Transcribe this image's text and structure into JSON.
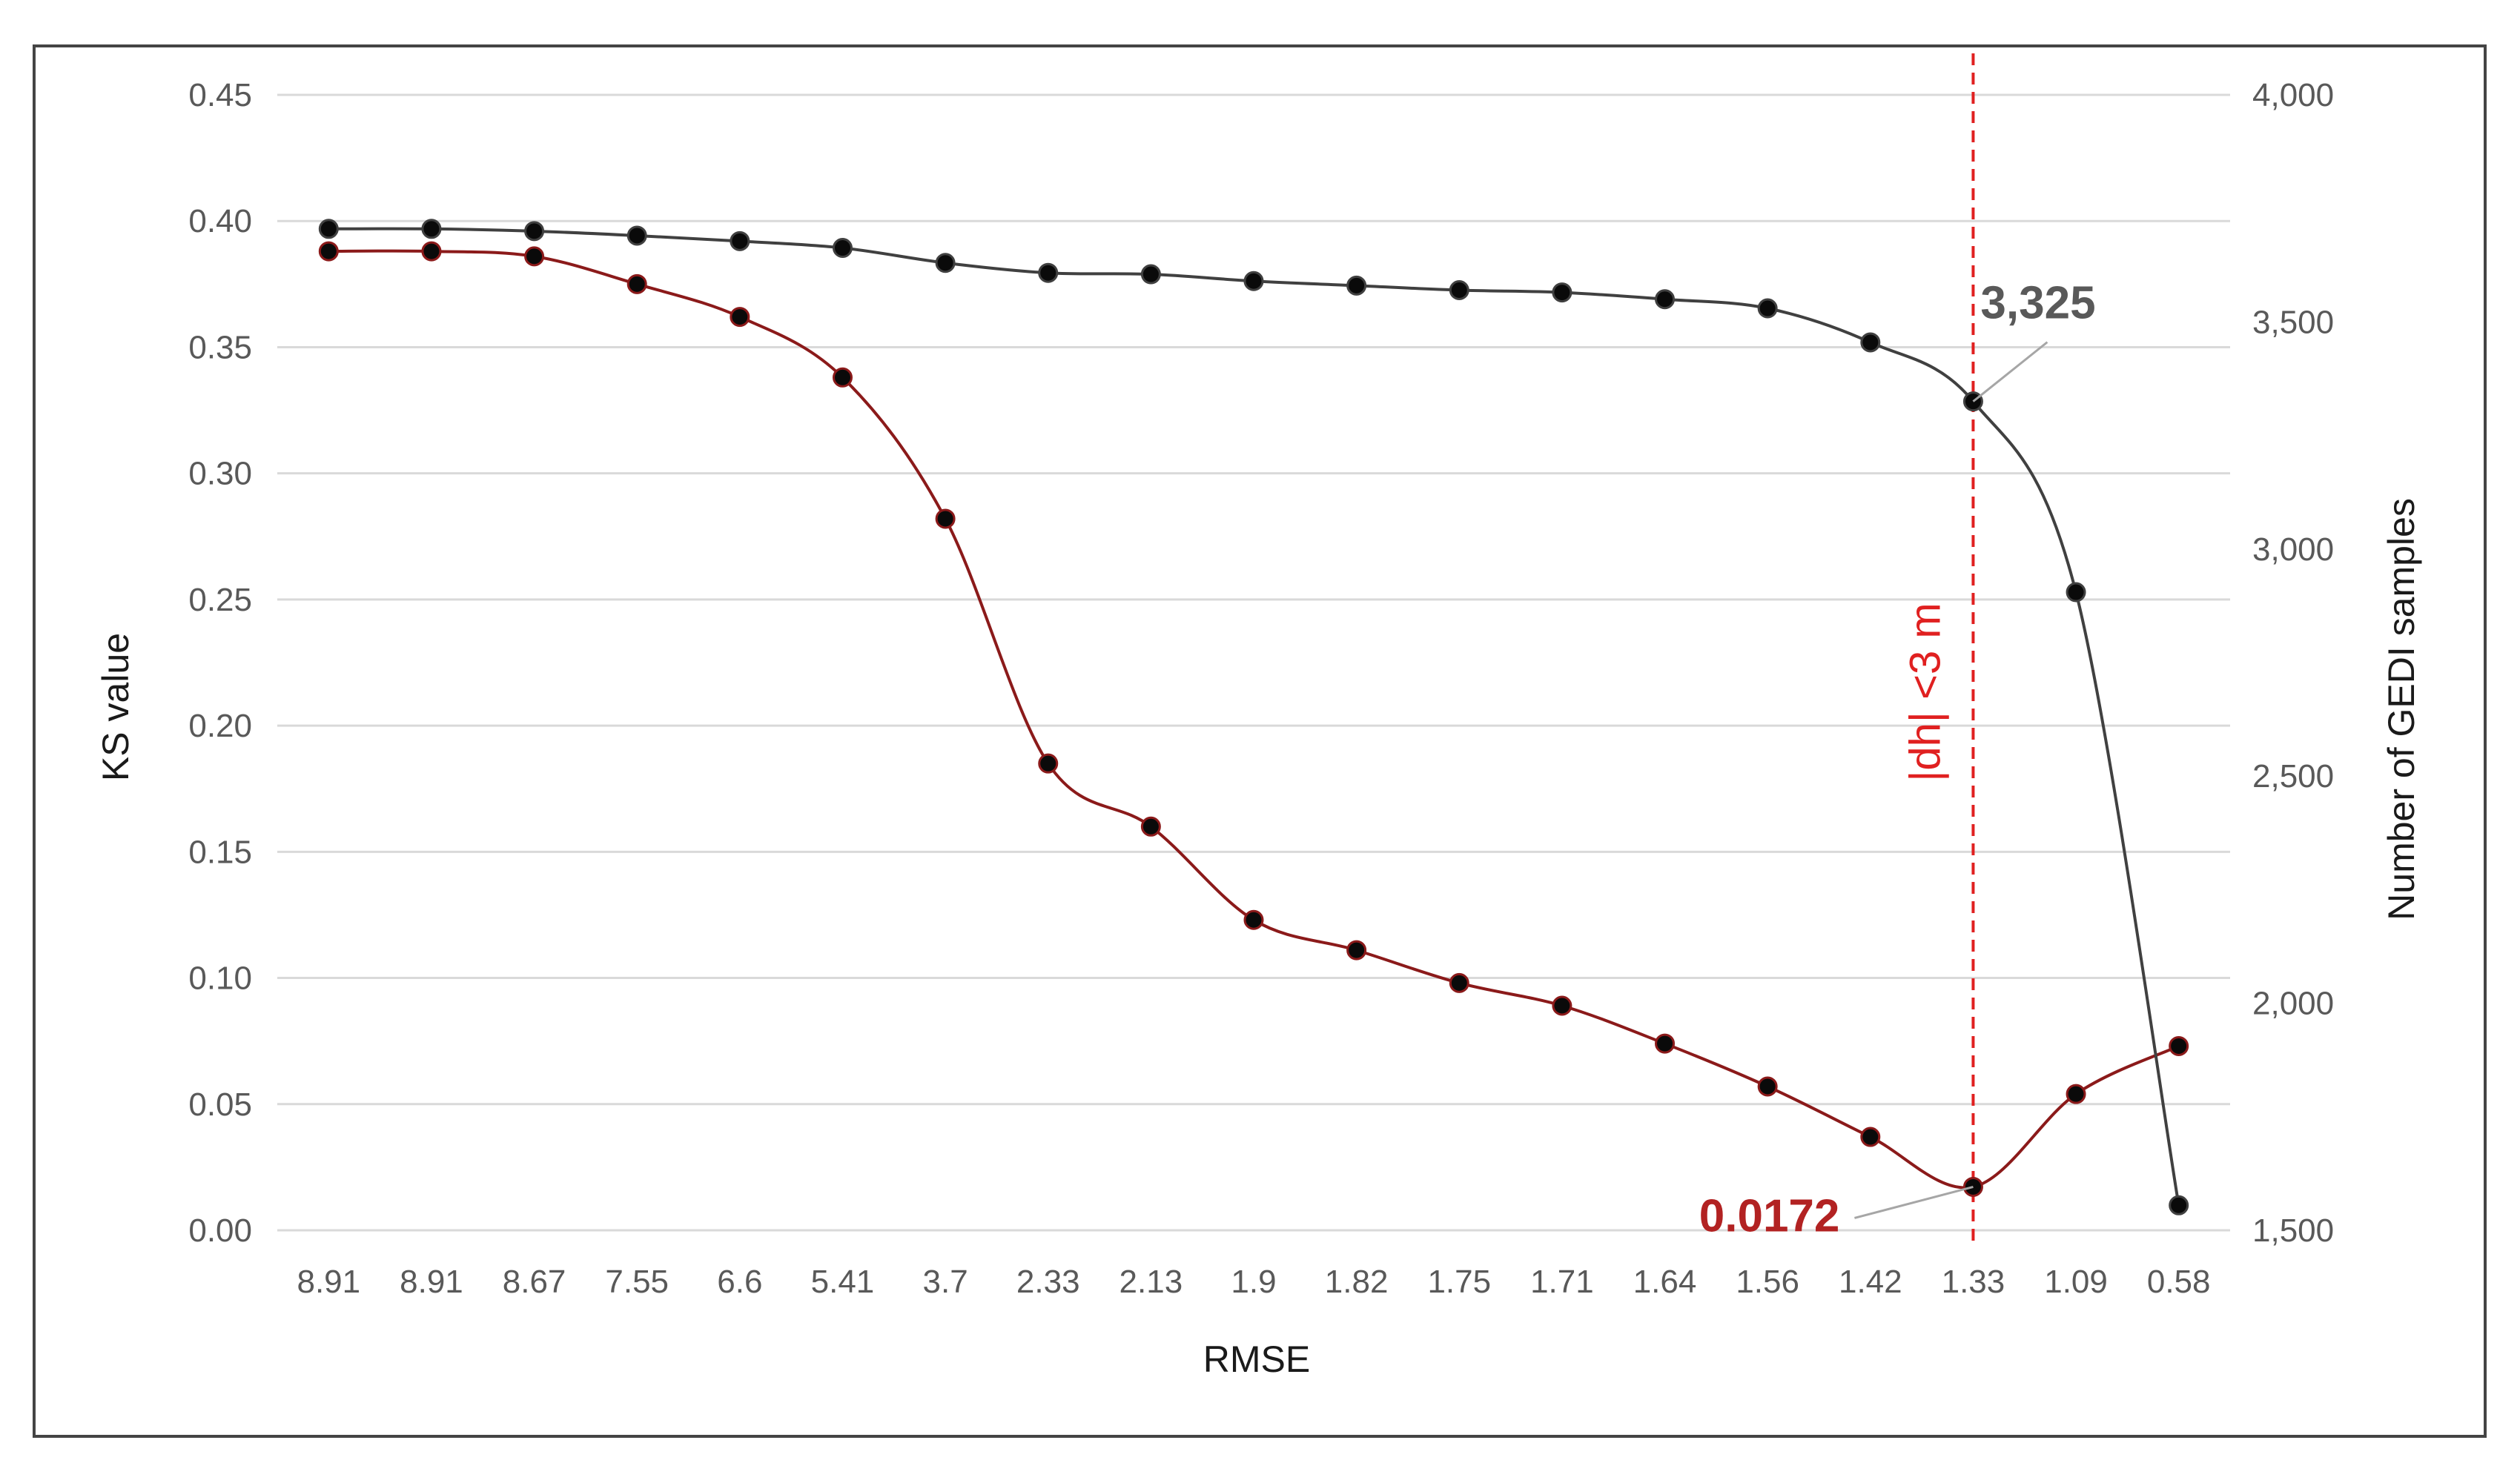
{
  "chart_data": {
    "type": "line",
    "title": "",
    "xlabel": "RMSE",
    "ylabel_left": "KS value",
    "ylabel_right": "Number of GEDI samples",
    "categories": [
      "8.91",
      "8.91",
      "8.67",
      "7.55",
      "6.6",
      "5.41",
      "3.7",
      "2.33",
      "2.13",
      "1.9",
      "1.82",
      "1.75",
      "1.71",
      "1.64",
      "1.56",
      "1.42",
      "1.33",
      "1.09",
      "0.58"
    ],
    "y_left": {
      "min": 0,
      "max": 0.45,
      "ticks": [
        "0.00",
        "0.05",
        "0.10",
        "0.15",
        "0.20",
        "0.25",
        "0.30",
        "0.35",
        "0.40",
        "0.45"
      ]
    },
    "y_right": {
      "min": 1500,
      "max": 4000,
      "ticks": [
        "1,500",
        "2,000",
        "2,500",
        "3,000",
        "3,500",
        "4,000"
      ]
    },
    "grid": true,
    "legend": "none",
    "series": [
      {
        "axis": "left",
        "color": "#8b1a1a",
        "values": [
          0.388,
          0.388,
          0.386,
          0.375,
          0.362,
          0.338,
          0.282,
          0.185,
          0.16,
          0.123,
          0.111,
          0.098,
          0.089,
          0.074,
          0.057,
          0.037,
          0.0172,
          0.054,
          0.073
        ]
      },
      {
        "axis": "right",
        "color": "#404040",
        "values": [
          3705,
          3705,
          3700,
          3690,
          3678,
          3663,
          3630,
          3608,
          3605,
          3590,
          3580,
          3570,
          3565,
          3550,
          3530,
          3455,
          3325,
          2905,
          1555
        ]
      }
    ],
    "reference_line": {
      "category_index": 16,
      "label": "|dh| <3 m",
      "color": "#e02020"
    },
    "annotations": [
      {
        "text": "3,325",
        "series": 1,
        "point_index": 16,
        "color": "#595959"
      },
      {
        "text": "0.0172",
        "series": 0,
        "point_index": 16,
        "color": "#b22222"
      }
    ]
  }
}
